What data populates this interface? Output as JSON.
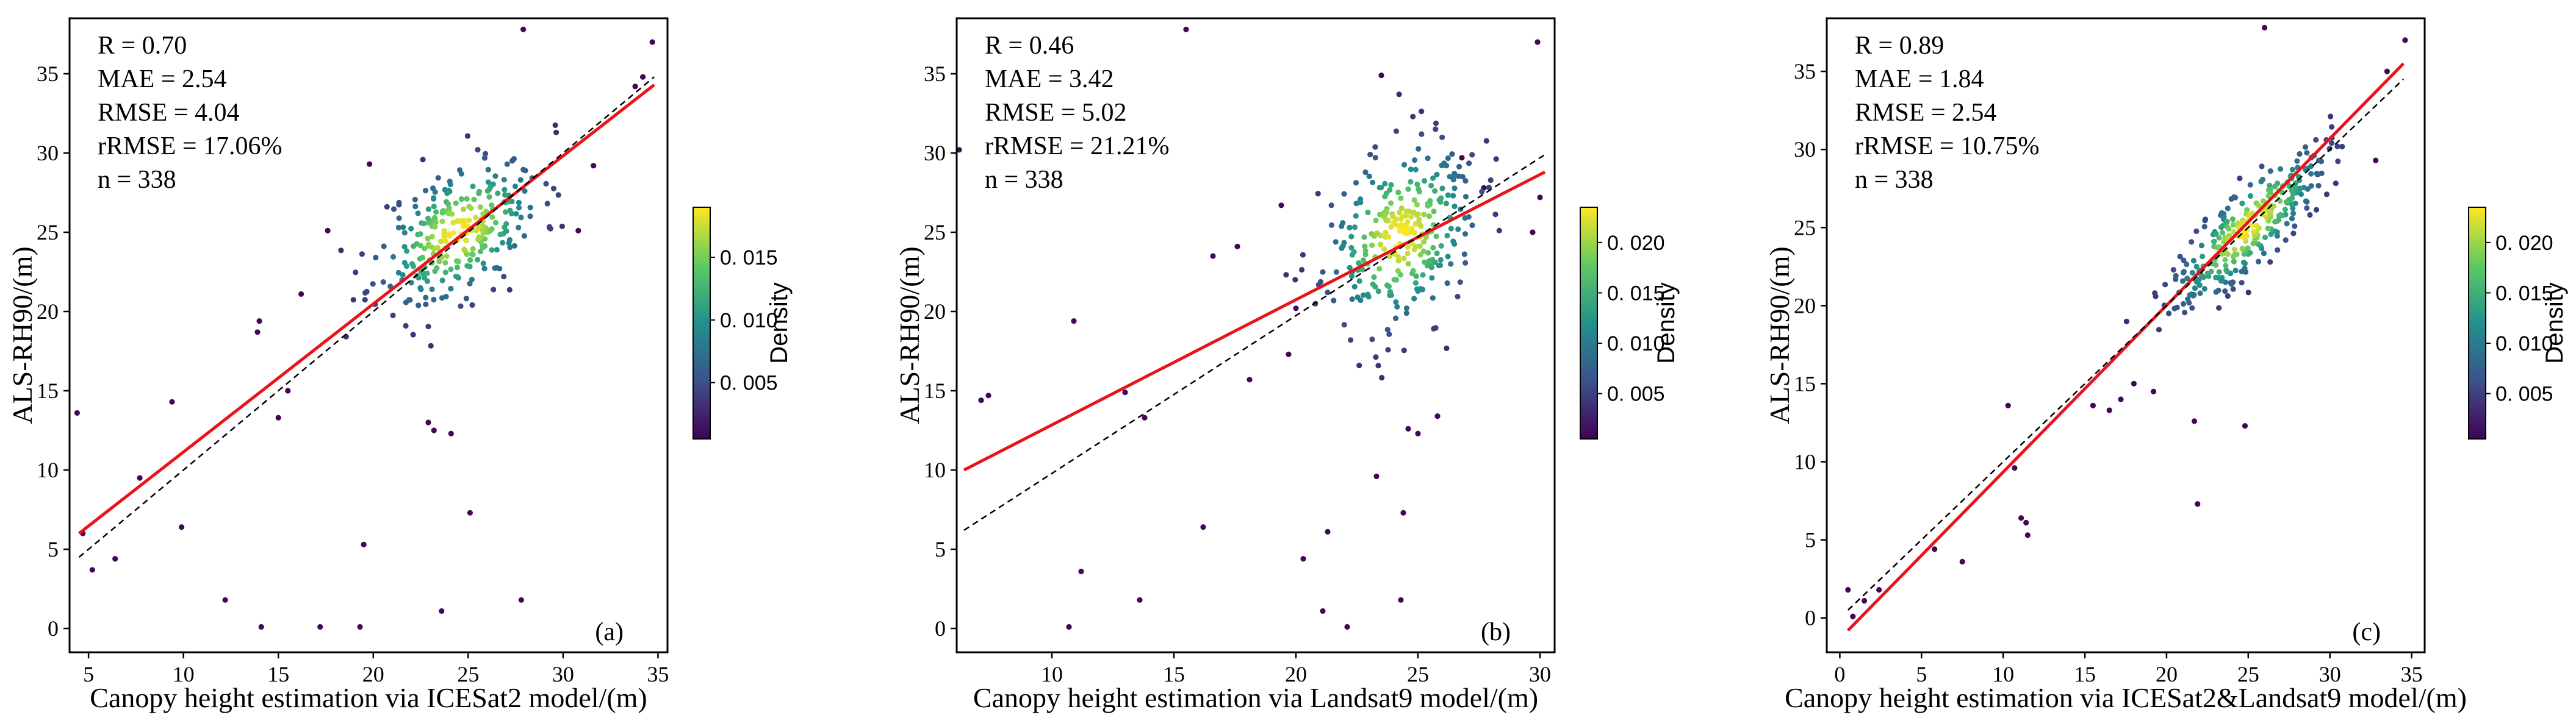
{
  "colors": {
    "fit_line": "#e8141a",
    "identity_line": "#000000",
    "colormap": [
      "#440154",
      "#3b528b",
      "#21918c",
      "#5ec962",
      "#fde725"
    ]
  },
  "chart_data": [
    {
      "type": "scatter",
      "panel_label": "(a)",
      "xlabel": "Canopy height estimation via ICESat2 model/(m)",
      "ylabel": "ALS-RH90/(m)",
      "xlim": [
        4,
        35.5
      ],
      "ylim": [
        -1.5,
        38.5
      ],
      "xticks": [
        5,
        10,
        15,
        20,
        25,
        30,
        35
      ],
      "yticks": [
        0,
        5,
        10,
        15,
        20,
        25,
        30,
        35
      ],
      "stats": [
        "R = 0.70",
        "MAE = 2.54",
        "RMSE = 4.04",
        "rRMSE = 17.06%",
        "n = 338"
      ],
      "fit_line": {
        "x": [
          4.5,
          34.8
        ],
        "y": [
          6.0,
          34.3
        ]
      },
      "identity_line": {
        "x": [
          4.5,
          34.8
        ],
        "y": [
          4.5,
          34.8
        ]
      },
      "colorbar": {
        "label": "Density",
        "min": 0.0005,
        "max": 0.019,
        "ticks": [
          0.005,
          0.01,
          0.015
        ],
        "tick_labels": [
          "0. 005",
          "0. 010",
          "0. 015"
        ]
      },
      "cluster": {
        "cx": 24.5,
        "cy": 25.0,
        "sx": 2.2,
        "sy": 2.4,
        "rho": 0.45,
        "n": 300,
        "seed": 11
      },
      "outliers": [
        [
          4.4,
          13.6
        ],
        [
          4.7,
          6.0
        ],
        [
          5.2,
          3.7
        ],
        [
          6.4,
          4.4
        ],
        [
          7.7,
          9.5
        ],
        [
          9.4,
          14.3
        ],
        [
          9.9,
          6.4
        ],
        [
          12.2,
          1.8
        ],
        [
          14.1,
          0.1
        ],
        [
          17.2,
          0.1
        ],
        [
          19.3,
          0.1
        ],
        [
          19.5,
          5.3
        ],
        [
          23.6,
          1.1
        ],
        [
          25.1,
          7.3
        ],
        [
          27.8,
          1.8
        ],
        [
          27.9,
          37.8
        ],
        [
          34.7,
          37.0
        ],
        [
          34.2,
          34.8
        ],
        [
          33.8,
          34.2
        ],
        [
          14.0,
          19.4
        ],
        [
          13.9,
          18.7
        ],
        [
          23.2,
          12.5
        ],
        [
          22.9,
          13.0
        ],
        [
          24.1,
          12.3
        ],
        [
          31.6,
          29.2
        ],
        [
          30.8,
          25.1
        ],
        [
          16.2,
          21.1
        ],
        [
          19.8,
          29.3
        ],
        [
          17.6,
          25.1
        ],
        [
          15.5,
          15.0
        ],
        [
          15.0,
          13.3
        ]
      ]
    },
    {
      "type": "scatter",
      "panel_label": "(b)",
      "xlabel": "Canopy height estimation via Landsat9 model/(m)",
      "ylabel": "ALS-RH90/(m)",
      "xlim": [
        6.1,
        30.6
      ],
      "ylim": [
        -1.5,
        38.5
      ],
      "xticks": [
        10,
        15,
        20,
        25,
        30
      ],
      "yticks": [
        0,
        5,
        10,
        15,
        20,
        25,
        30,
        35
      ],
      "stats": [
        "R = 0.46",
        "MAE = 3.42",
        "RMSE = 5.02",
        "rRMSE = 21.21%",
        "n = 338"
      ],
      "fit_line": {
        "x": [
          6.4,
          30.2
        ],
        "y": [
          10.0,
          28.8
        ]
      },
      "identity_line": {
        "x": [
          6.4,
          30.2
        ],
        "y": [
          6.2,
          29.9
        ]
      },
      "colorbar": {
        "label": "Density",
        "min": 0.0005,
        "max": 0.0235,
        "ticks": [
          0.005,
          0.01,
          0.015,
          0.02
        ],
        "tick_labels": [
          "0. 005",
          "0. 010",
          "0. 015",
          "0. 020"
        ]
      },
      "cluster": {
        "cx": 24.3,
        "cy": 24.8,
        "sx": 1.6,
        "sy": 3.0,
        "rho": 0.25,
        "n": 295,
        "seed": 23
      },
      "outliers": [
        [
          6.2,
          30.2
        ],
        [
          7.1,
          14.4
        ],
        [
          7.4,
          14.7
        ],
        [
          10.7,
          0.1
        ],
        [
          10.9,
          19.4
        ],
        [
          11.2,
          3.6
        ],
        [
          13.0,
          14.9
        ],
        [
          13.6,
          1.8
        ],
        [
          13.8,
          13.3
        ],
        [
          15.5,
          37.8
        ],
        [
          16.2,
          6.4
        ],
        [
          21.1,
          1.1
        ],
        [
          21.3,
          6.1
        ],
        [
          22.1,
          0.1
        ],
        [
          23.3,
          9.6
        ],
        [
          24.3,
          1.8
        ],
        [
          24.4,
          7.3
        ],
        [
          24.6,
          12.6
        ],
        [
          25.0,
          12.3
        ],
        [
          25.8,
          13.4
        ],
        [
          29.9,
          37.0
        ],
        [
          29.7,
          25.0
        ],
        [
          30.0,
          27.2
        ],
        [
          19.4,
          26.7
        ],
        [
          17.6,
          24.1
        ],
        [
          16.6,
          23.5
        ],
        [
          20.3,
          4.4
        ],
        [
          20.0,
          20.2
        ],
        [
          19.7,
          17.3
        ],
        [
          18.1,
          15.7
        ],
        [
          27.7,
          27.8
        ],
        [
          26.8,
          29.7
        ],
        [
          23.5,
          34.9
        ]
      ]
    },
    {
      "type": "scatter",
      "panel_label": "(c)",
      "xlabel": "Canopy height estimation via ICESat2&Landsat9 model/(m)",
      "ylabel": "ALS-RH90/(m)",
      "xlim": [
        -0.8,
        35.8
      ],
      "ylim": [
        -2.2,
        38.4
      ],
      "xticks": [
        0,
        5,
        10,
        15,
        20,
        25,
        30,
        35
      ],
      "yticks": [
        0,
        5,
        10,
        15,
        20,
        25,
        30,
        35
      ],
      "stats": [
        "R = 0.89",
        "MAE = 1.84",
        "RMSE = 2.54",
        "rRMSE = 10.75%",
        "n = 338"
      ],
      "fit_line": {
        "x": [
          0.5,
          34.5
        ],
        "y": [
          -0.8,
          35.5
        ]
      },
      "identity_line": {
        "x": [
          0.5,
          34.5
        ],
        "y": [
          0.5,
          34.5
        ]
      },
      "colorbar": {
        "label": "Density",
        "min": 0.0005,
        "max": 0.0235,
        "ticks": [
          0.005,
          0.01,
          0.015,
          0.02
        ],
        "tick_labels": [
          "0. 005",
          "0. 010",
          "0. 015",
          "0. 020"
        ]
      },
      "cluster": {
        "cx": 25.0,
        "cy": 25.0,
        "sx": 2.4,
        "sy": 2.6,
        "rho": 0.82,
        "n": 305,
        "seed": 37
      },
      "outliers": [
        [
          0.5,
          1.8
        ],
        [
          0.8,
          0.1
        ],
        [
          1.5,
          1.1
        ],
        [
          2.4,
          1.8
        ],
        [
          5.8,
          4.4
        ],
        [
          7.5,
          3.6
        ],
        [
          10.3,
          13.6
        ],
        [
          10.7,
          9.6
        ],
        [
          11.1,
          6.4
        ],
        [
          11.4,
          6.1
        ],
        [
          11.5,
          5.3
        ],
        [
          21.9,
          7.3
        ],
        [
          24.8,
          12.3
        ],
        [
          21.7,
          12.6
        ],
        [
          26.0,
          37.8
        ],
        [
          33.5,
          35.0
        ],
        [
          34.6,
          37.0
        ],
        [
          16.5,
          13.3
        ],
        [
          17.2,
          14.0
        ],
        [
          18.0,
          15.0
        ],
        [
          15.5,
          13.6
        ],
        [
          19.2,
          14.5
        ],
        [
          32.8,
          29.3
        ]
      ]
    }
  ]
}
